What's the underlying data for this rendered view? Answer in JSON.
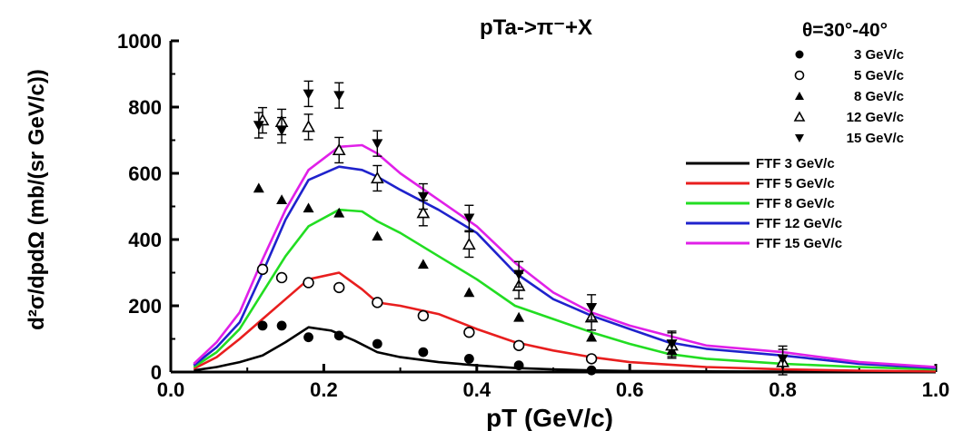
{
  "chart_data": {
    "type": "scatter",
    "title": "pTa->π⁻+X",
    "subtitle": "θ=30°-40°",
    "xlabel": "pT (GeV/c)",
    "ylabel": "d²σ/dpdΩ (mb/(sr GeV/c))",
    "xlim": [
      0.0,
      1.0
    ],
    "ylim": [
      0,
      1000
    ],
    "x_ticks": [
      "0.0",
      "0.2",
      "0.4",
      "0.6",
      "0.8",
      "1.0"
    ],
    "y_ticks": [
      "0",
      "200",
      "400",
      "600",
      "800",
      "1000"
    ],
    "grid": false,
    "legend_position": "top-right",
    "series": [
      {
        "name": "3 GeV/c",
        "marker": "filled-circle",
        "color": "#000000",
        "x": [
          0.12,
          0.145,
          0.18,
          0.22,
          0.27,
          0.33,
          0.39,
          0.455,
          0.55
        ],
        "y": [
          140,
          140,
          105,
          110,
          85,
          60,
          40,
          20,
          5
        ]
      },
      {
        "name": "5 GeV/c",
        "marker": "open-circle",
        "color": "#000000",
        "x": [
          0.12,
          0.145,
          0.18,
          0.22,
          0.27,
          0.33,
          0.39,
          0.455,
          0.55
        ],
        "y": [
          310,
          285,
          270,
          255,
          210,
          170,
          120,
          80,
          40
        ]
      },
      {
        "name": "8 GeV/c",
        "marker": "filled-triangle-up",
        "color": "#000000",
        "x": [
          0.115,
          0.145,
          0.18,
          0.22,
          0.27,
          0.33,
          0.39,
          0.455,
          0.55,
          0.655,
          0.8
        ],
        "y": [
          555,
          520,
          495,
          480,
          410,
          325,
          240,
          165,
          105,
          65,
          35
        ]
      },
      {
        "name": "12 GeV/c",
        "marker": "open-triangle-up",
        "color": "#000000",
        "x": [
          0.12,
          0.145,
          0.18,
          0.22,
          0.27,
          0.33,
          0.39,
          0.455,
          0.55,
          0.655,
          0.8
        ],
        "y": [
          760,
          755,
          740,
          670,
          585,
          480,
          385,
          260,
          165,
          80,
          30
        ]
      },
      {
        "name": "15 GeV/c",
        "marker": "filled-triangle-down",
        "color": "#000000",
        "x": [
          0.115,
          0.145,
          0.18,
          0.22,
          0.27,
          0.33,
          0.39,
          0.455,
          0.55,
          0.655,
          0.8
        ],
        "y": [
          745,
          730,
          840,
          835,
          690,
          530,
          465,
          295,
          195,
          85,
          40
        ]
      },
      {
        "name": "FTF 3 GeV/c",
        "type": "line",
        "color": "#000000",
        "x": [
          0.03,
          0.06,
          0.09,
          0.12,
          0.15,
          0.18,
          0.21,
          0.24,
          0.27,
          0.3,
          0.35,
          0.4,
          0.45,
          0.5,
          0.55,
          0.6,
          0.7,
          0.8,
          0.9,
          1.0
        ],
        "y": [
          5,
          15,
          30,
          50,
          90,
          135,
          125,
          95,
          60,
          45,
          30,
          20,
          12,
          8,
          5,
          3,
          2,
          1,
          0,
          0
        ]
      },
      {
        "name": "FTF 5 GeV/c",
        "type": "line",
        "color": "#e81e1e",
        "x": [
          0.03,
          0.06,
          0.09,
          0.12,
          0.15,
          0.18,
          0.22,
          0.25,
          0.27,
          0.3,
          0.35,
          0.4,
          0.45,
          0.5,
          0.55,
          0.6,
          0.7,
          0.8,
          0.9,
          1.0
        ],
        "y": [
          10,
          45,
          100,
          160,
          220,
          280,
          300,
          250,
          210,
          200,
          175,
          130,
          90,
          65,
          45,
          30,
          15,
          8,
          4,
          2
        ]
      },
      {
        "name": "FTF 8 GeV/c",
        "type": "line",
        "color": "#22dd22",
        "x": [
          0.03,
          0.06,
          0.09,
          0.12,
          0.15,
          0.18,
          0.22,
          0.25,
          0.27,
          0.3,
          0.35,
          0.4,
          0.45,
          0.5,
          0.55,
          0.6,
          0.65,
          0.7,
          0.8,
          0.9,
          1.0
        ],
        "y": [
          15,
          60,
          130,
          240,
          350,
          440,
          490,
          485,
          455,
          420,
          350,
          280,
          200,
          160,
          120,
          85,
          55,
          40,
          25,
          15,
          8
        ]
      },
      {
        "name": "FTF 12 GeV/c",
        "type": "line",
        "color": "#1f22cc",
        "x": [
          0.03,
          0.06,
          0.09,
          0.12,
          0.15,
          0.18,
          0.22,
          0.25,
          0.27,
          0.3,
          0.35,
          0.4,
          0.45,
          0.5,
          0.55,
          0.6,
          0.65,
          0.7,
          0.8,
          0.9,
          1.0
        ],
        "y": [
          20,
          75,
          150,
          300,
          460,
          580,
          620,
          610,
          590,
          550,
          490,
          420,
          300,
          220,
          170,
          130,
          90,
          70,
          50,
          25,
          12
        ]
      },
      {
        "name": "FTF 15 GeV/c",
        "type": "line",
        "color": "#e020e8",
        "x": [
          0.03,
          0.06,
          0.09,
          0.12,
          0.15,
          0.18,
          0.22,
          0.25,
          0.27,
          0.3,
          0.35,
          0.4,
          0.45,
          0.5,
          0.55,
          0.6,
          0.65,
          0.7,
          0.8,
          0.9,
          1.0
        ],
        "y": [
          25,
          90,
          180,
          340,
          490,
          610,
          680,
          685,
          660,
          600,
          520,
          440,
          330,
          240,
          180,
          140,
          110,
          80,
          60,
          30,
          15
        ]
      }
    ]
  }
}
